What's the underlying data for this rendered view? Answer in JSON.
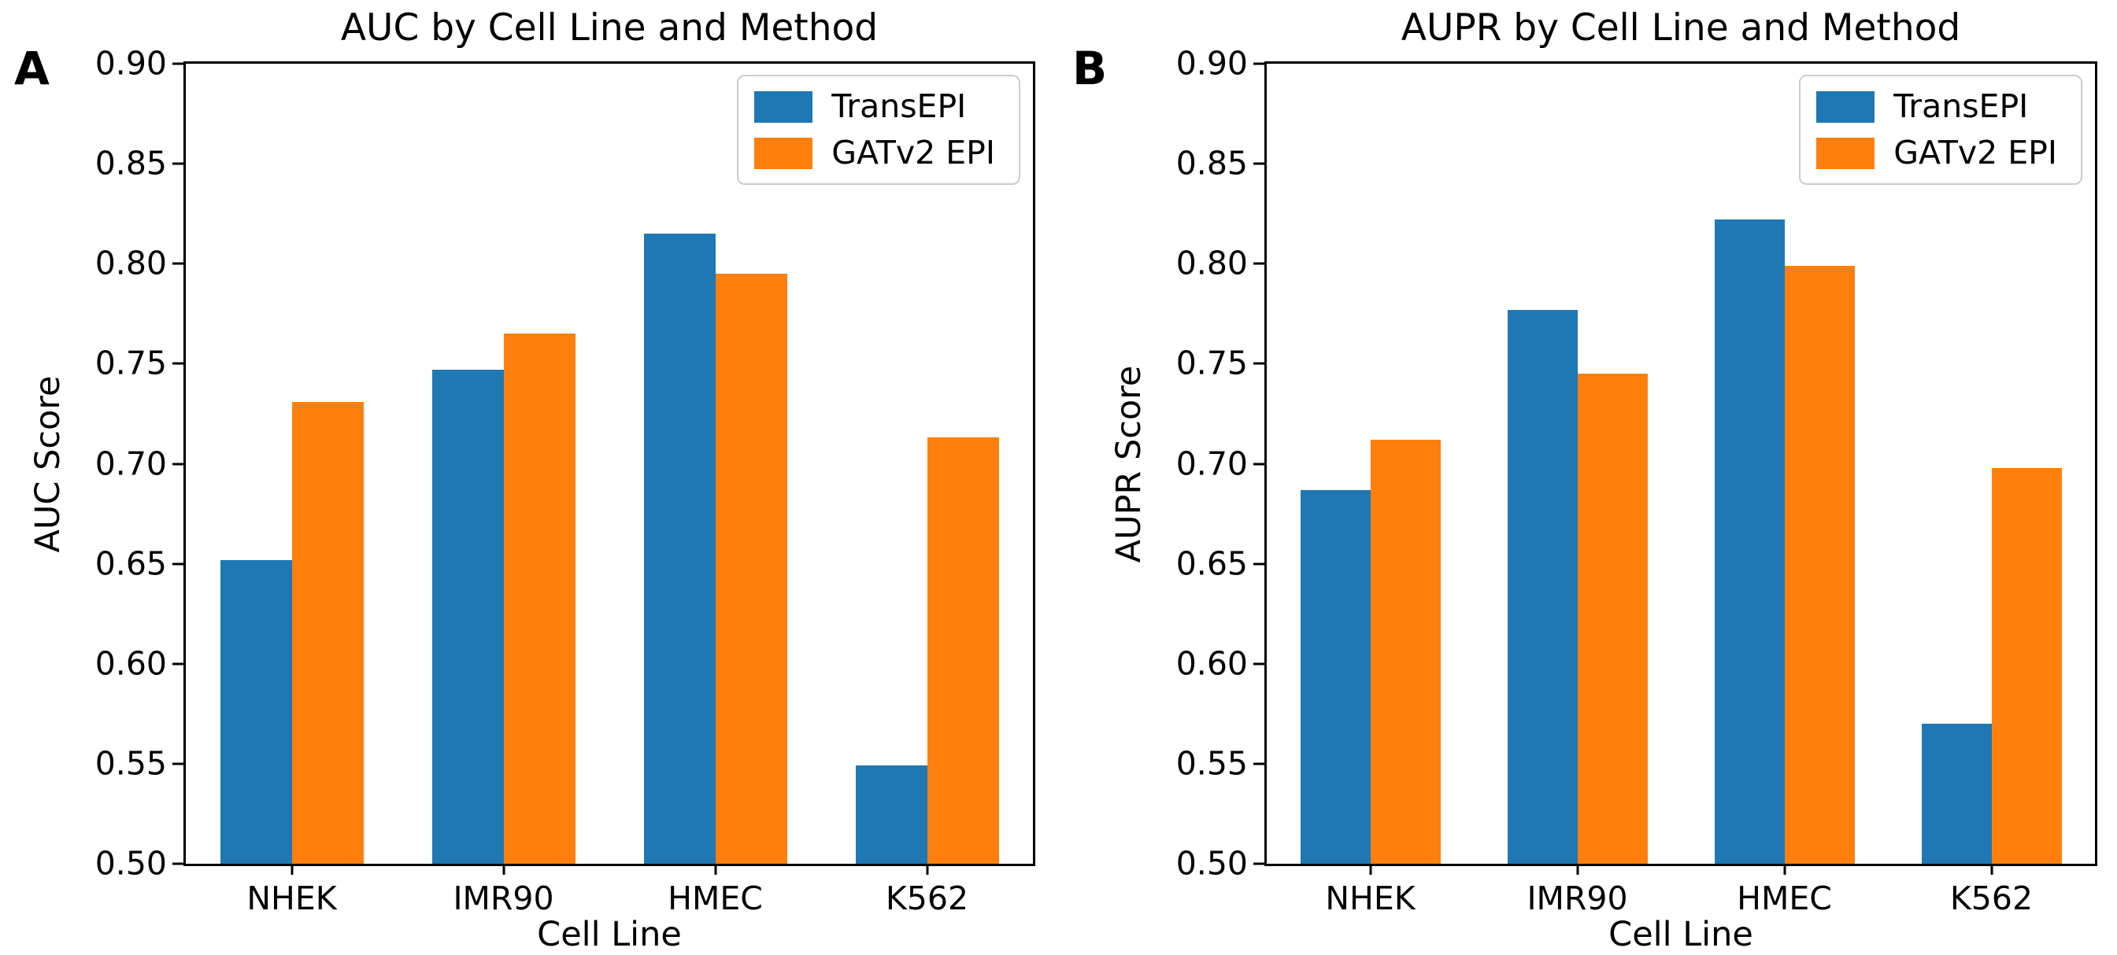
{
  "panels": [
    {
      "letter": "A"
    },
    {
      "letter": "B"
    }
  ],
  "legend_labels": [
    "TransEPI",
    "GATv2 EPI"
  ],
  "colors": {
    "transepi_blue": "#1f77b4",
    "gatv2_orange": "#ff7f0e",
    "axis": "#000000",
    "legend_border": "#cccccc"
  },
  "chart_data": [
    {
      "type": "bar",
      "title": "AUC by Cell Line and Method",
      "xlabel": "Cell Line",
      "ylabel": "AUC Score",
      "categories": [
        "NHEK",
        "IMR90",
        "HMEC",
        "K562"
      ],
      "series": [
        {
          "name": "TransEPI",
          "color": "#1f77b4",
          "values": [
            0.652,
            0.747,
            0.815,
            0.549
          ]
        },
        {
          "name": "GATv2 EPI",
          "color": "#ff7f0e",
          "values": [
            0.731,
            0.765,
            0.795,
            0.713
          ]
        }
      ],
      "ylim": [
        0.5,
        0.9
      ],
      "ytick_step": 0.05,
      "ytick_labels": [
        "0.50",
        "0.55",
        "0.60",
        "0.65",
        "0.70",
        "0.75",
        "0.80",
        "0.85",
        "0.90"
      ],
      "grid": false,
      "legend_position": "upper right"
    },
    {
      "type": "bar",
      "title": "AUPR by Cell Line and Method",
      "xlabel": "Cell Line",
      "ylabel": "AUPR Score",
      "categories": [
        "NHEK",
        "IMR90",
        "HMEC",
        "K562"
      ],
      "series": [
        {
          "name": "TransEPI",
          "color": "#1f77b4",
          "values": [
            0.687,
            0.777,
            0.822,
            0.57
          ]
        },
        {
          "name": "GATv2 EPI",
          "color": "#ff7f0e",
          "values": [
            0.712,
            0.745,
            0.799,
            0.698
          ]
        }
      ],
      "ylim": [
        0.5,
        0.9
      ],
      "ytick_step": 0.05,
      "ytick_labels": [
        "0.50",
        "0.55",
        "0.60",
        "0.65",
        "0.70",
        "0.75",
        "0.80",
        "0.85",
        "0.90"
      ],
      "grid": false,
      "legend_position": "upper right"
    }
  ]
}
